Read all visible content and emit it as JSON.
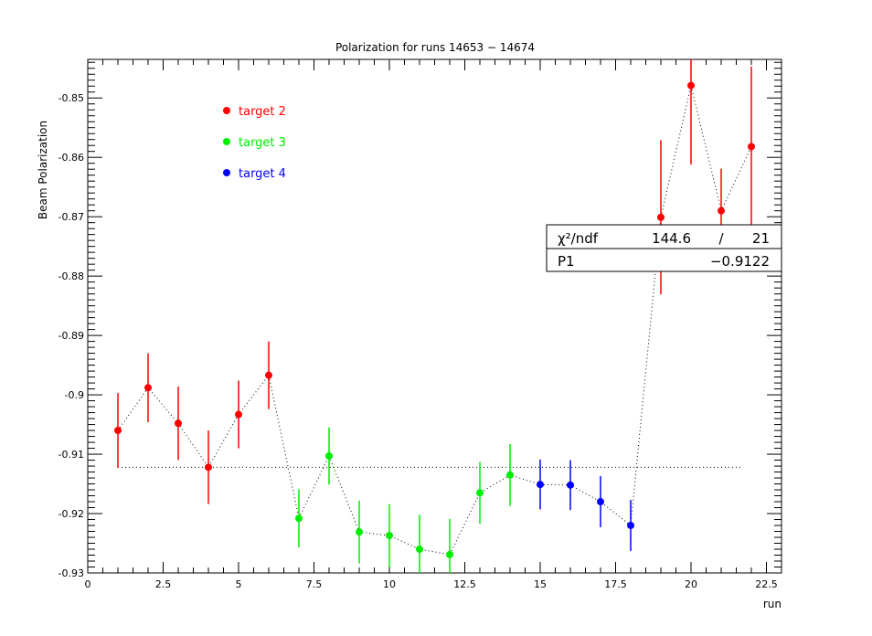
{
  "chart_data": {
    "type": "scatter",
    "title": "Polarization for runs 14653 − 14674",
    "xlabel": "run",
    "ylabel": "Beam Polarization",
    "xlim": [
      0,
      23
    ],
    "ylim": [
      -0.93,
      -0.8435
    ],
    "x_ticks": [
      0,
      2.5,
      5,
      7.5,
      10,
      12.5,
      15,
      17.5,
      20,
      22.5
    ],
    "x_tick_labels": [
      "0",
      "2.5",
      "5",
      "7.5",
      "10",
      "12.5",
      "15",
      "17.5",
      "20",
      "22.5"
    ],
    "y_ticks": [
      -0.93,
      -0.92,
      -0.91,
      -0.9,
      -0.89,
      -0.88,
      -0.87,
      -0.86,
      -0.85
    ],
    "y_tick_labels": [
      "-0.93",
      "-0.92",
      "-0.91",
      "-0.9",
      "-0.89",
      "-0.88",
      "-0.87",
      "-0.86",
      "-0.85"
    ],
    "grid": false,
    "legend_position": "top-left",
    "connecting_line": "dotted",
    "series": [
      {
        "name": "target 2",
        "color": "#ff0000",
        "points": [
          {
            "x": 1,
            "y": -0.906,
            "err": 0.0063
          },
          {
            "x": 2,
            "y": -0.8988,
            "err": 0.0058
          },
          {
            "x": 3,
            "y": -0.9048,
            "err": 0.0062
          },
          {
            "x": 4,
            "y": -0.9122,
            "err": 0.0062
          },
          {
            "x": 5,
            "y": -0.9033,
            "err": 0.0057
          },
          {
            "x": 6,
            "y": -0.8967,
            "err": 0.0057
          },
          {
            "x": 19,
            "y": -0.8701,
            "err": 0.013
          },
          {
            "x": 20,
            "y": -0.8479,
            "err": 0.0133
          },
          {
            "x": 21,
            "y": -0.869,
            "err": 0.0071
          },
          {
            "x": 22,
            "y": -0.8582,
            "err": 0.0135
          }
        ]
      },
      {
        "name": "target 3",
        "color": "#00ee00",
        "points": [
          {
            "x": 7,
            "y": -0.9208,
            "err": 0.0049
          },
          {
            "x": 8,
            "y": -0.9103,
            "err": 0.0048
          },
          {
            "x": 9,
            "y": -0.9231,
            "err": 0.0053
          },
          {
            "x": 10,
            "y": -0.9237,
            "err": 0.0053
          },
          {
            "x": 11,
            "y": -0.926,
            "err": 0.0058
          },
          {
            "x": 12,
            "y": -0.9269,
            "err": 0.006
          },
          {
            "x": 13,
            "y": -0.9165,
            "err": 0.0052
          },
          {
            "x": 14,
            "y": -0.9135,
            "err": 0.0052
          }
        ]
      },
      {
        "name": "target 4",
        "color": "#0000ff",
        "points": [
          {
            "x": 15,
            "y": -0.9151,
            "err": 0.0042
          },
          {
            "x": 16,
            "y": -0.9152,
            "err": 0.0042
          },
          {
            "x": 17,
            "y": -0.918,
            "err": 0.0043
          },
          {
            "x": 18,
            "y": -0.922,
            "err": 0.0043
          }
        ]
      }
    ],
    "fit": {
      "p1": -0.9122,
      "x_range": [
        1,
        21.7
      ],
      "style": "dotted"
    },
    "stats_box": {
      "chi2_label": "χ²/ndf",
      "chi2": "144.6",
      "separator": "/",
      "ndf": "21",
      "p1_label": "P1",
      "p1_value": "−0.9122"
    }
  }
}
